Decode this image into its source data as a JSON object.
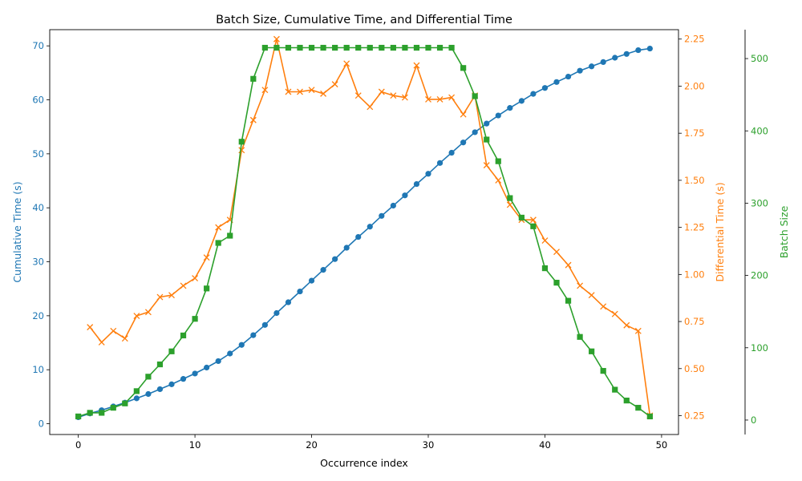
{
  "chart_data": {
    "type": "line",
    "title": "Batch Size, Cumulative Time, and Differential Time",
    "xlabel": "Occurrence index",
    "x": [
      0,
      1,
      2,
      3,
      4,
      5,
      6,
      7,
      8,
      9,
      10,
      11,
      12,
      13,
      14,
      15,
      16,
      17,
      18,
      19,
      20,
      21,
      22,
      23,
      24,
      25,
      26,
      27,
      28,
      29,
      30,
      31,
      32,
      33,
      34,
      35,
      36,
      37,
      38,
      39,
      40,
      41,
      42,
      43,
      44,
      45,
      46,
      47,
      48,
      49
    ],
    "xlim": [
      -2.45,
      51.45
    ],
    "xticks": [
      0,
      10,
      20,
      30,
      40,
      50
    ],
    "axes": {
      "left": {
        "label": "Cumulative Time (s)",
        "color": "#1f77b4",
        "ylim": [
          -2,
          73
        ],
        "ticks": [
          0,
          10,
          20,
          30,
          40,
          50,
          60,
          70
        ],
        "tick_labels": [
          "0",
          "10",
          "20",
          "30",
          "40",
          "50",
          "60",
          "70"
        ]
      },
      "right1": {
        "label": "Differential Time (s)",
        "color": "#ff7f0e",
        "ylim": [
          0.15,
          2.3
        ],
        "ticks": [
          0.25,
          0.5,
          0.75,
          1.0,
          1.25,
          1.5,
          1.75,
          2.0,
          2.25
        ],
        "tick_labels": [
          "0.25",
          "0.50",
          "0.75",
          "1.00",
          "1.25",
          "1.50",
          "1.75",
          "2.00",
          "2.25"
        ]
      },
      "right2": {
        "label": "Batch Size",
        "color": "#2ca02c",
        "ylim": [
          -20,
          540
        ],
        "ticks": [
          0,
          100,
          200,
          300,
          400,
          500
        ],
        "tick_labels": [
          "0",
          "100",
          "200",
          "300",
          "400",
          "500"
        ]
      }
    },
    "series": [
      {
        "axis": "left",
        "marker": "circle",
        "color": "#1f77b4",
        "values": [
          1.2,
          1.9,
          2.5,
          3.2,
          3.9,
          4.7,
          5.5,
          6.4,
          7.3,
          8.3,
          9.3,
          10.4,
          11.6,
          13.0,
          14.6,
          16.4,
          18.3,
          20.5,
          22.5,
          24.5,
          26.5,
          28.5,
          30.5,
          32.6,
          34.6,
          36.5,
          38.5,
          40.4,
          42.3,
          44.4,
          46.3,
          48.3,
          50.2,
          52.1,
          54.0,
          55.6,
          57.1,
          58.5,
          59.8,
          61.1,
          62.2,
          63.3,
          64.3,
          65.4,
          66.2,
          67.0,
          67.8,
          68.5,
          69.2,
          69.5
        ]
      },
      {
        "axis": "right1",
        "marker": "x",
        "color": "#ff7f0e",
        "values": [
          null,
          0.72,
          0.64,
          0.7,
          0.66,
          0.78,
          0.8,
          0.88,
          0.89,
          0.94,
          0.98,
          1.09,
          1.25,
          1.29,
          1.66,
          1.82,
          1.98,
          2.25,
          1.97,
          1.97,
          1.98,
          1.96,
          2.01,
          2.12,
          1.95,
          1.89,
          1.97,
          1.95,
          1.94,
          2.11,
          1.93,
          1.93,
          1.94,
          1.85,
          1.95,
          1.58,
          1.5,
          1.37,
          1.29,
          1.29,
          1.18,
          1.12,
          1.05,
          0.94,
          0.89,
          0.83,
          0.79,
          0.73,
          0.7,
          0.25
        ]
      },
      {
        "axis": "right2",
        "marker": "square",
        "color": "#2ca02c",
        "values": [
          5,
          10,
          10,
          17,
          23,
          40,
          60,
          77,
          95,
          117,
          140,
          182,
          245,
          255,
          385,
          472,
          515,
          515,
          515,
          515,
          515,
          515,
          515,
          515,
          515,
          515,
          515,
          515,
          515,
          515,
          515,
          515,
          515,
          487,
          448,
          388,
          358,
          307,
          280,
          268,
          210,
          190,
          165,
          115,
          95,
          68,
          42,
          27,
          17,
          5
        ]
      }
    ]
  }
}
